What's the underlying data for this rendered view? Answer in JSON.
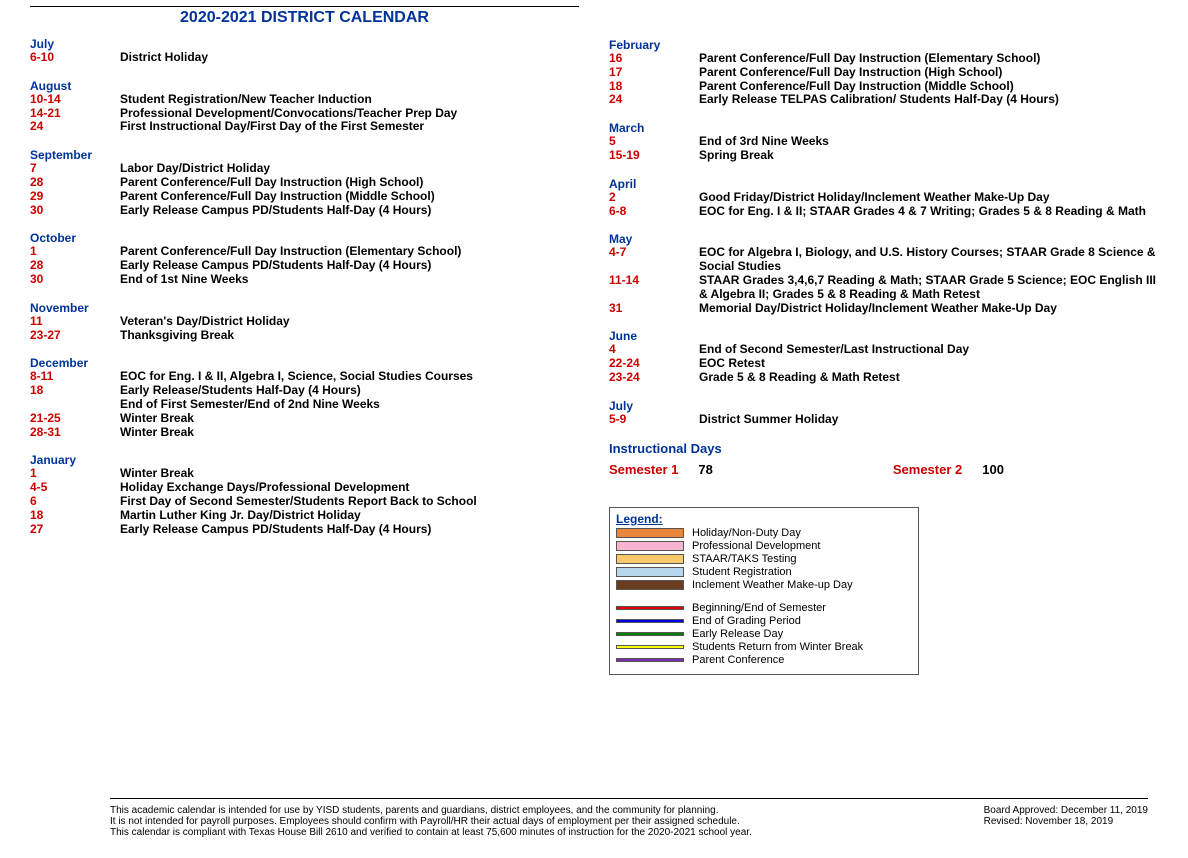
{
  "title": "2020-2021 DISTRICT CALENDAR",
  "months_left": [
    {
      "name": "July",
      "entries": [
        {
          "date": "6-10",
          "desc": "District Holiday"
        }
      ]
    },
    {
      "name": "August",
      "entries": [
        {
          "date": "10-14",
          "desc": "Student Registration/New Teacher Induction"
        },
        {
          "date": "14-21",
          "desc": "Professional Development/Convocations/Teacher Prep Day"
        },
        {
          "date": "24",
          "desc": "First Instructional Day/First Day of the First Semester"
        }
      ]
    },
    {
      "name": "September",
      "entries": [
        {
          "date": "7",
          "desc": "Labor Day/District Holiday"
        },
        {
          "date": "28",
          "desc": "Parent Conference/Full Day Instruction (High School)"
        },
        {
          "date": "29",
          "desc": "Parent Conference/Full Day Instruction (Middle School)"
        },
        {
          "date": "30",
          "desc": "Early Release Campus PD/Students Half-Day (4 Hours)"
        }
      ]
    },
    {
      "name": "October",
      "entries": [
        {
          "date": "1",
          "desc": "Parent Conference/Full Day Instruction  (Elementary School)"
        },
        {
          "date": "28",
          "desc": "Early Release Campus PD/Students Half-Day (4 Hours)"
        },
        {
          "date": "30",
          "desc": "End of 1st Nine Weeks"
        }
      ]
    },
    {
      "name": "November",
      "entries": [
        {
          "date": "11",
          "desc": "Veteran's Day/District Holiday"
        },
        {
          "date": "23-27",
          "desc": "Thanksgiving Break"
        }
      ]
    },
    {
      "name": "December",
      "entries": [
        {
          "date": "8-11",
          "desc": "EOC for Eng. I & II, Algebra I, Science, Social Studies Courses"
        },
        {
          "date": "18",
          "desc": "Early Release/Students Half-Day (4 Hours)"
        },
        {
          "date": "",
          "desc": "End of First Semester/End of 2nd Nine Weeks"
        },
        {
          "date": "21-25",
          "desc": "Winter Break"
        },
        {
          "date": "28-31",
          "desc": "Winter Break"
        }
      ]
    },
    {
      "name": "January",
      "entries": [
        {
          "date": "1",
          "desc": "Winter Break"
        },
        {
          "date": "4-5",
          "desc": "Holiday Exchange Days/Professional Development"
        },
        {
          "date": "6",
          "desc": "First Day of Second Semester/Students Report Back to School"
        },
        {
          "date": "18",
          "desc": "Martin Luther King Jr. Day/District Holiday"
        },
        {
          "date": "27",
          "desc": "Early Release Campus PD/Students Half-Day (4 Hours)"
        }
      ]
    }
  ],
  "months_right": [
    {
      "name": "February",
      "entries": [
        {
          "date": "16",
          "desc": "Parent Conference/Full Day Instruction (Elementary School)"
        },
        {
          "date": "17",
          "desc": "Parent Conference/Full Day Instruction (High School)"
        },
        {
          "date": "18",
          "desc": "Parent Conference/Full Day Instruction (Middle School)"
        },
        {
          "date": "24",
          "desc": "Early Release TELPAS Calibration/ Students Half-Day (4 Hours)"
        }
      ]
    },
    {
      "name": "March",
      "entries": [
        {
          "date": "5",
          "desc": "End of 3rd Nine Weeks"
        },
        {
          "date": "15-19",
          "desc": "Spring Break"
        }
      ]
    },
    {
      "name": "April",
      "entries": [
        {
          "date": "2",
          "desc": "Good Friday/District Holiday/Inclement Weather Make-Up Day"
        },
        {
          "date": "6-8",
          "desc": "EOC for Eng. I & II; STAAR Grades 4 & 7 Writing; Grades 5 & 8 Reading & Math"
        }
      ]
    },
    {
      "name": "May",
      "entries": [
        {
          "date": "4-7",
          "desc": "EOC for Algebra I, Biology, and U.S. History Courses; STAAR Grade 8 Science & Social Studies"
        },
        {
          "date": "11-14",
          "desc": "STAAR Grades 3,4,6,7 Reading & Math; STAAR Grade 5 Science; EOC English III & Algebra II; Grades 5 & 8 Reading & Math Retest"
        },
        {
          "date": "31",
          "desc": "Memorial Day/District Holiday/Inclement Weather Make-Up Day"
        }
      ]
    },
    {
      "name": "June",
      "entries": [
        {
          "date": "4",
          "desc": "End of Second Semester/Last Instructional Day"
        },
        {
          "date": "22-24",
          "desc": "EOC Retest"
        },
        {
          "date": "23-24",
          "desc": "Grade 5 & 8 Reading & Math Retest"
        }
      ]
    },
    {
      "name": "July",
      "entries": [
        {
          "date": "5-9",
          "desc": "District Summer Holiday"
        }
      ]
    }
  ],
  "instructional": {
    "title": "Instructional Days",
    "sem1_label": "Semester 1",
    "sem1_val": "78",
    "sem2_label": "Semester 2",
    "sem2_val": "100"
  },
  "legend": {
    "title": "Legend:",
    "group1": [
      {
        "color": "#e8863b",
        "label": "Holiday/Non-Duty Day"
      },
      {
        "color": "#f7b4d0",
        "label": "Professional Development"
      },
      {
        "color": "#f7c96b",
        "label": "STAAR/TAKS Testing"
      },
      {
        "color": "#b7d7ee",
        "label": "Student Registration"
      },
      {
        "color": "#6b3d1f",
        "label": "Inclement Weather Make-up Day"
      }
    ],
    "group2": [
      {
        "color": "#e20000",
        "label": "Beginning/End of Semester"
      },
      {
        "color": "#0000e2",
        "label": "End of Grading Period"
      },
      {
        "color": "#008000",
        "label": "Early Release Day"
      },
      {
        "color": "#ffff00",
        "label": "Students Return from Winter Break"
      },
      {
        "color": "#7a2fb0",
        "label": "Parent Conference"
      }
    ]
  },
  "footer": {
    "line1": "This academic calendar is intended for use by YISD students, parents and guardians, district employees, and the community for planning.",
    "line2": "It is not intended for payroll purposes. Employees should confirm with Payroll/HR their actual days of employment per their assigned schedule.",
    "line3": "This calendar is compliant with Texas House Bill 2610 and verified to contain at least 75,600 minutes of instruction for the 2020-2021 school year.",
    "approved": "Board Approved:  December 11, 2019",
    "revised": "Revised: November 18, 2019"
  },
  "colors": {
    "title": "#003399",
    "month": "#003399",
    "date": "#cc0000"
  }
}
